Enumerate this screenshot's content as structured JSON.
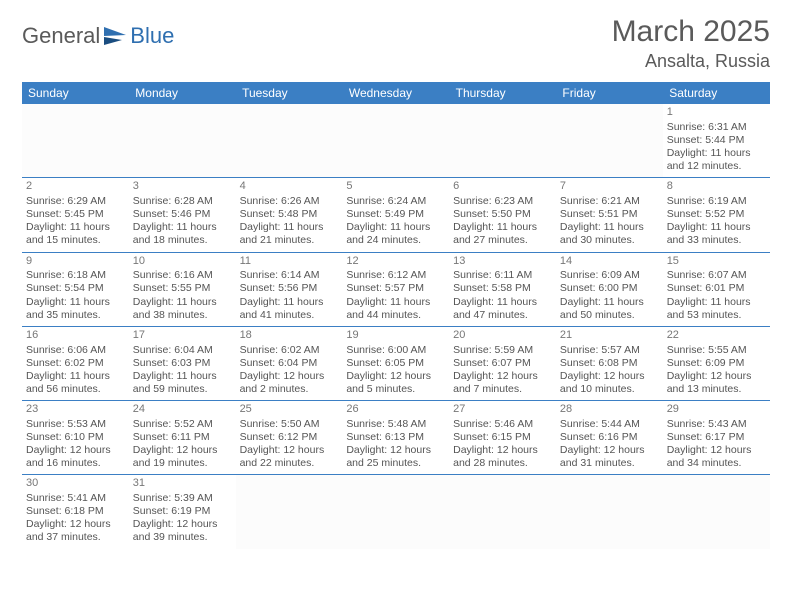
{
  "logo": {
    "part1": "General",
    "part2": "Blue"
  },
  "title": "March 2025",
  "location": "Ansalta, Russia",
  "colors": {
    "header_bg": "#3b7fc4",
    "header_fg": "#ffffff",
    "border": "#3b7fc4",
    "logo_blue": "#2f6fb0",
    "text_gray": "#5a5a5a"
  },
  "days_of_week": [
    "Sunday",
    "Monday",
    "Tuesday",
    "Wednesday",
    "Thursday",
    "Friday",
    "Saturday"
  ],
  "weeks": [
    [
      null,
      null,
      null,
      null,
      null,
      null,
      {
        "n": "1",
        "sr": "Sunrise: 6:31 AM",
        "ss": "Sunset: 5:44 PM",
        "dl": "Daylight: 11 hours and 12 minutes."
      }
    ],
    [
      {
        "n": "2",
        "sr": "Sunrise: 6:29 AM",
        "ss": "Sunset: 5:45 PM",
        "dl": "Daylight: 11 hours and 15 minutes."
      },
      {
        "n": "3",
        "sr": "Sunrise: 6:28 AM",
        "ss": "Sunset: 5:46 PM",
        "dl": "Daylight: 11 hours and 18 minutes."
      },
      {
        "n": "4",
        "sr": "Sunrise: 6:26 AM",
        "ss": "Sunset: 5:48 PM",
        "dl": "Daylight: 11 hours and 21 minutes."
      },
      {
        "n": "5",
        "sr": "Sunrise: 6:24 AM",
        "ss": "Sunset: 5:49 PM",
        "dl": "Daylight: 11 hours and 24 minutes."
      },
      {
        "n": "6",
        "sr": "Sunrise: 6:23 AM",
        "ss": "Sunset: 5:50 PM",
        "dl": "Daylight: 11 hours and 27 minutes."
      },
      {
        "n": "7",
        "sr": "Sunrise: 6:21 AM",
        "ss": "Sunset: 5:51 PM",
        "dl": "Daylight: 11 hours and 30 minutes."
      },
      {
        "n": "8",
        "sr": "Sunrise: 6:19 AM",
        "ss": "Sunset: 5:52 PM",
        "dl": "Daylight: 11 hours and 33 minutes."
      }
    ],
    [
      {
        "n": "9",
        "sr": "Sunrise: 6:18 AM",
        "ss": "Sunset: 5:54 PM",
        "dl": "Daylight: 11 hours and 35 minutes."
      },
      {
        "n": "10",
        "sr": "Sunrise: 6:16 AM",
        "ss": "Sunset: 5:55 PM",
        "dl": "Daylight: 11 hours and 38 minutes."
      },
      {
        "n": "11",
        "sr": "Sunrise: 6:14 AM",
        "ss": "Sunset: 5:56 PM",
        "dl": "Daylight: 11 hours and 41 minutes."
      },
      {
        "n": "12",
        "sr": "Sunrise: 6:12 AM",
        "ss": "Sunset: 5:57 PM",
        "dl": "Daylight: 11 hours and 44 minutes."
      },
      {
        "n": "13",
        "sr": "Sunrise: 6:11 AM",
        "ss": "Sunset: 5:58 PM",
        "dl": "Daylight: 11 hours and 47 minutes."
      },
      {
        "n": "14",
        "sr": "Sunrise: 6:09 AM",
        "ss": "Sunset: 6:00 PM",
        "dl": "Daylight: 11 hours and 50 minutes."
      },
      {
        "n": "15",
        "sr": "Sunrise: 6:07 AM",
        "ss": "Sunset: 6:01 PM",
        "dl": "Daylight: 11 hours and 53 minutes."
      }
    ],
    [
      {
        "n": "16",
        "sr": "Sunrise: 6:06 AM",
        "ss": "Sunset: 6:02 PM",
        "dl": "Daylight: 11 hours and 56 minutes."
      },
      {
        "n": "17",
        "sr": "Sunrise: 6:04 AM",
        "ss": "Sunset: 6:03 PM",
        "dl": "Daylight: 11 hours and 59 minutes."
      },
      {
        "n": "18",
        "sr": "Sunrise: 6:02 AM",
        "ss": "Sunset: 6:04 PM",
        "dl": "Daylight: 12 hours and 2 minutes."
      },
      {
        "n": "19",
        "sr": "Sunrise: 6:00 AM",
        "ss": "Sunset: 6:05 PM",
        "dl": "Daylight: 12 hours and 5 minutes."
      },
      {
        "n": "20",
        "sr": "Sunrise: 5:59 AM",
        "ss": "Sunset: 6:07 PM",
        "dl": "Daylight: 12 hours and 7 minutes."
      },
      {
        "n": "21",
        "sr": "Sunrise: 5:57 AM",
        "ss": "Sunset: 6:08 PM",
        "dl": "Daylight: 12 hours and 10 minutes."
      },
      {
        "n": "22",
        "sr": "Sunrise: 5:55 AM",
        "ss": "Sunset: 6:09 PM",
        "dl": "Daylight: 12 hours and 13 minutes."
      }
    ],
    [
      {
        "n": "23",
        "sr": "Sunrise: 5:53 AM",
        "ss": "Sunset: 6:10 PM",
        "dl": "Daylight: 12 hours and 16 minutes."
      },
      {
        "n": "24",
        "sr": "Sunrise: 5:52 AM",
        "ss": "Sunset: 6:11 PM",
        "dl": "Daylight: 12 hours and 19 minutes."
      },
      {
        "n": "25",
        "sr": "Sunrise: 5:50 AM",
        "ss": "Sunset: 6:12 PM",
        "dl": "Daylight: 12 hours and 22 minutes."
      },
      {
        "n": "26",
        "sr": "Sunrise: 5:48 AM",
        "ss": "Sunset: 6:13 PM",
        "dl": "Daylight: 12 hours and 25 minutes."
      },
      {
        "n": "27",
        "sr": "Sunrise: 5:46 AM",
        "ss": "Sunset: 6:15 PM",
        "dl": "Daylight: 12 hours and 28 minutes."
      },
      {
        "n": "28",
        "sr": "Sunrise: 5:44 AM",
        "ss": "Sunset: 6:16 PM",
        "dl": "Daylight: 12 hours and 31 minutes."
      },
      {
        "n": "29",
        "sr": "Sunrise: 5:43 AM",
        "ss": "Sunset: 6:17 PM",
        "dl": "Daylight: 12 hours and 34 minutes."
      }
    ],
    [
      {
        "n": "30",
        "sr": "Sunrise: 5:41 AM",
        "ss": "Sunset: 6:18 PM",
        "dl": "Daylight: 12 hours and 37 minutes."
      },
      {
        "n": "31",
        "sr": "Sunrise: 5:39 AM",
        "ss": "Sunset: 6:19 PM",
        "dl": "Daylight: 12 hours and 39 minutes."
      },
      null,
      null,
      null,
      null,
      null
    ]
  ]
}
